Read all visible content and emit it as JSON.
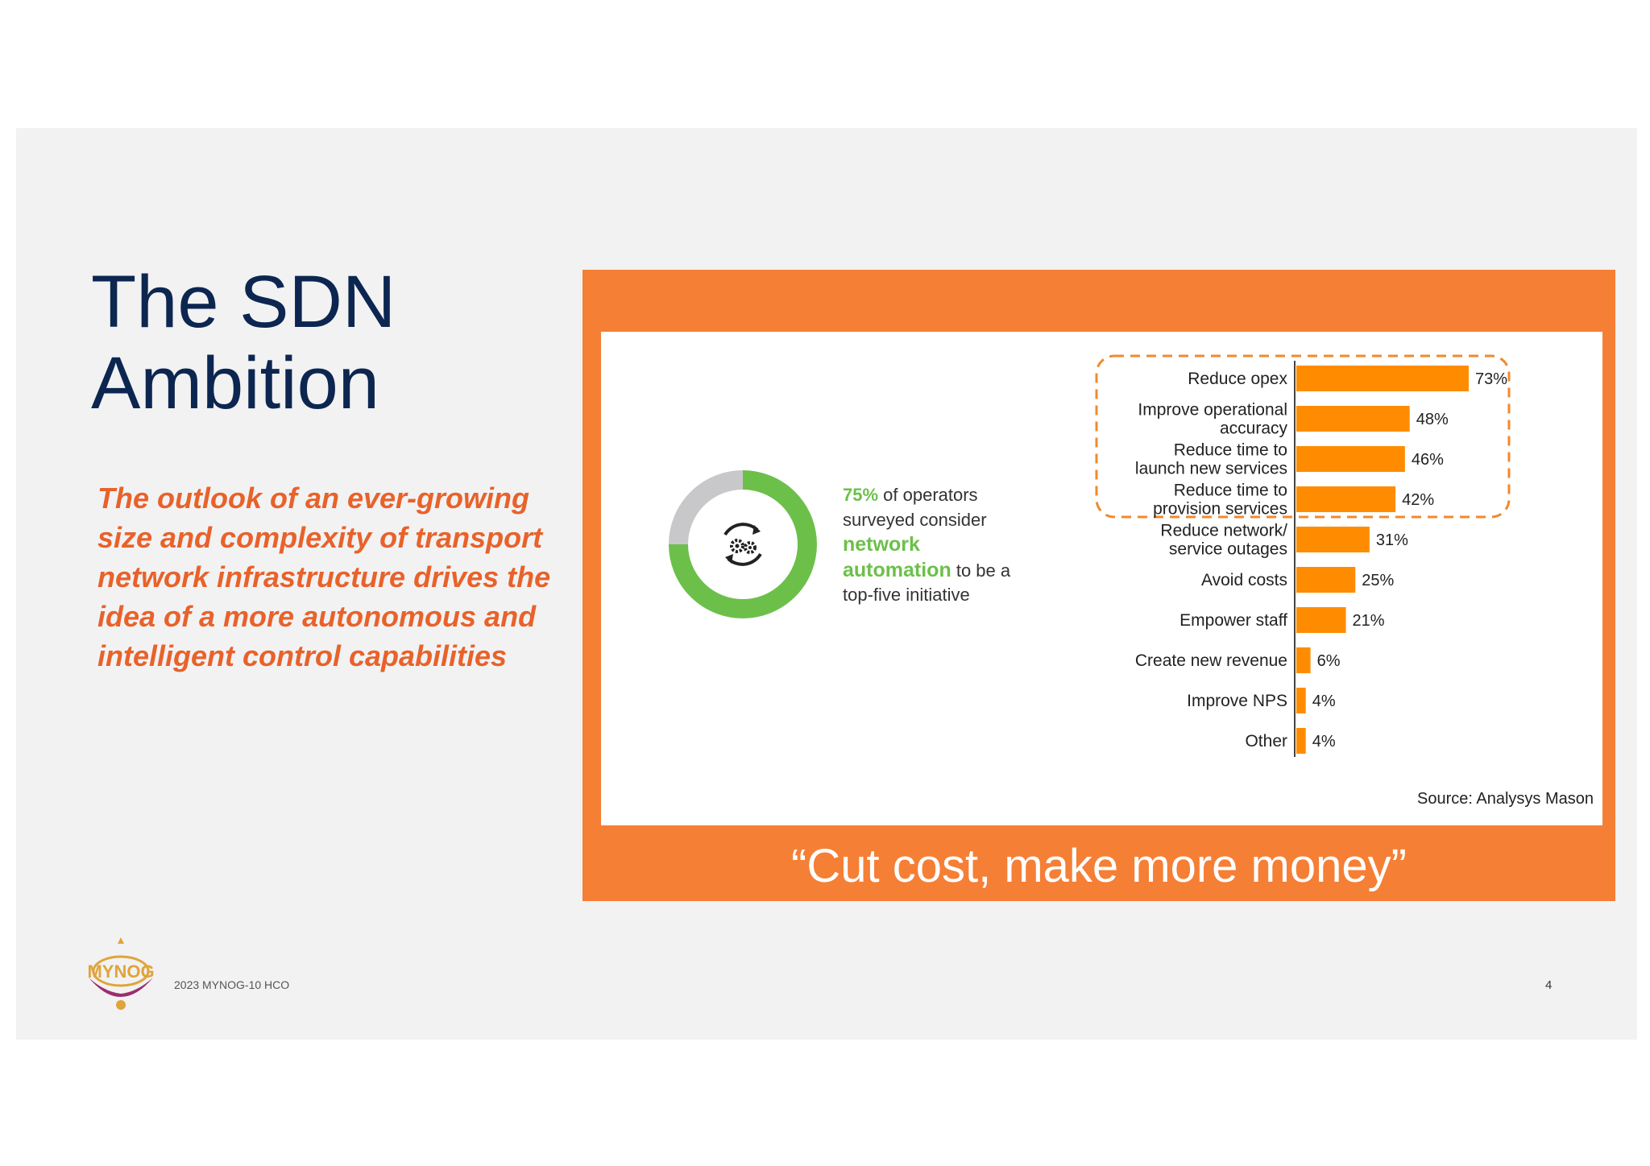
{
  "slide": {
    "title_line1": "The SDN",
    "title_line2": "Ambition",
    "body_lines": [
      "The outlook of an ever-growing",
      "size and complexity of transport",
      "network infrastructure drives the",
      "idea of a more autonomous and",
      "intelligent control capabilities"
    ],
    "quote": "“Cut cost, make more money”",
    "footer": "2023 MYNOG-10 HCO",
    "page_number": "4",
    "logo_text": "MYNOG"
  },
  "colors": {
    "title": "#0c2650",
    "accent_orange": "#f57f35",
    "body_orange": "#e8622a",
    "bar": "#ff8c00",
    "donut_green": "#6cc04a",
    "donut_grey": "#c8c8ca"
  },
  "chart_data": [
    {
      "type": "pie",
      "slices": [
        {
          "label": "consider network automation top-five",
          "value": 75,
          "color": "#6cc04a"
        },
        {
          "label": "other",
          "value": 25,
          "color": "#c8c8ca"
        }
      ],
      "center_icon": "gears-cycle-icon",
      "annotation": {
        "pct": "75%",
        "line1_rest": " of operators",
        "line2": "surveyed consider",
        "line3": "network",
        "line4_green": "automation",
        "line4_rest": " to be a",
        "line5": "top-five initiative"
      }
    },
    {
      "type": "bar",
      "orientation": "horizontal",
      "categories": [
        [
          "Reduce opex"
        ],
        [
          "Improve operational",
          "accuracy"
        ],
        [
          "Reduce time to",
          "launch new services"
        ],
        [
          "Reduce time to",
          "provision services"
        ],
        [
          "Reduce network/",
          "service outages"
        ],
        [
          "Avoid costs"
        ],
        [
          "Empower staff"
        ],
        [
          "Create new revenue"
        ],
        [
          "Improve NPS"
        ],
        [
          "Other"
        ]
      ],
      "values": [
        73,
        48,
        46,
        42,
        31,
        25,
        21,
        6,
        4,
        4
      ],
      "value_labels": [
        "73%",
        "48%",
        "46%",
        "42%",
        "31%",
        "25%",
        "21%",
        "6%",
        "4%",
        "4%"
      ],
      "highlight": "top four bars outlined with dashed orange box",
      "source": "Source: Analysys Mason"
    }
  ]
}
